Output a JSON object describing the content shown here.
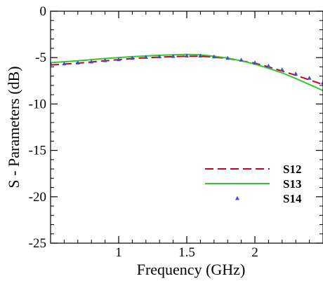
{
  "chart_data": {
    "type": "line",
    "title": "",
    "xlabel": "Frequency (GHz)",
    "ylabel": "S - Parameters (dB)",
    "xlim": [
      0.5,
      2.5
    ],
    "ylim": [
      -25,
      0
    ],
    "xticks": [
      1,
      1.5,
      2
    ],
    "xtick_labels": [
      "1",
      "1.5",
      "2"
    ],
    "yticks": [
      0,
      -5,
      -10,
      -15,
      -20,
      -25
    ],
    "ytick_labels": [
      "0",
      "-5",
      "-10",
      "-15",
      "-20",
      "-25"
    ],
    "x_minor_step": 0.1,
    "y_minor_step": 1,
    "grid": false,
    "legend_position": "bottom-right",
    "series": [
      {
        "name": "S12",
        "style": "dashed",
        "color": "#d0021b",
        "x": [
          0.5,
          0.7,
          0.9,
          1.1,
          1.3,
          1.5,
          1.6,
          1.7,
          1.8,
          1.9,
          2.0,
          2.1,
          2.2,
          2.3,
          2.4,
          2.5
        ],
        "values": [
          -5.8,
          -5.6,
          -5.35,
          -5.1,
          -4.95,
          -4.85,
          -4.85,
          -4.95,
          -5.1,
          -5.35,
          -5.6,
          -6.0,
          -6.45,
          -6.9,
          -7.4,
          -7.9
        ]
      },
      {
        "name": "S13",
        "style": "solid",
        "color": "#2ec82e",
        "x": [
          0.5,
          0.7,
          0.9,
          1.1,
          1.3,
          1.5,
          1.6,
          1.7,
          1.8,
          1.9,
          2.0,
          2.1,
          2.2,
          2.3,
          2.4,
          2.5
        ],
        "values": [
          -5.55,
          -5.35,
          -5.1,
          -4.9,
          -4.75,
          -4.65,
          -4.7,
          -4.85,
          -5.05,
          -5.35,
          -5.7,
          -6.15,
          -6.65,
          -7.25,
          -7.9,
          -8.55
        ]
      },
      {
        "name": "S14",
        "style": "markers",
        "color": "#3a4fd8",
        "x": [
          0.5,
          0.6,
          0.7,
          0.8,
          0.9,
          1.0,
          1.1,
          1.2,
          1.3,
          1.4,
          1.5,
          1.6,
          1.7,
          1.8,
          1.9,
          2.0,
          2.1,
          2.2,
          2.3,
          2.4,
          2.5
        ],
        "values": [
          -5.7,
          -5.65,
          -5.55,
          -5.45,
          -5.3,
          -5.2,
          -5.05,
          -4.95,
          -4.9,
          -4.85,
          -4.8,
          -4.8,
          -4.9,
          -5.05,
          -5.25,
          -5.55,
          -5.9,
          -6.3,
          -6.75,
          -7.2,
          -7.7
        ]
      }
    ]
  }
}
